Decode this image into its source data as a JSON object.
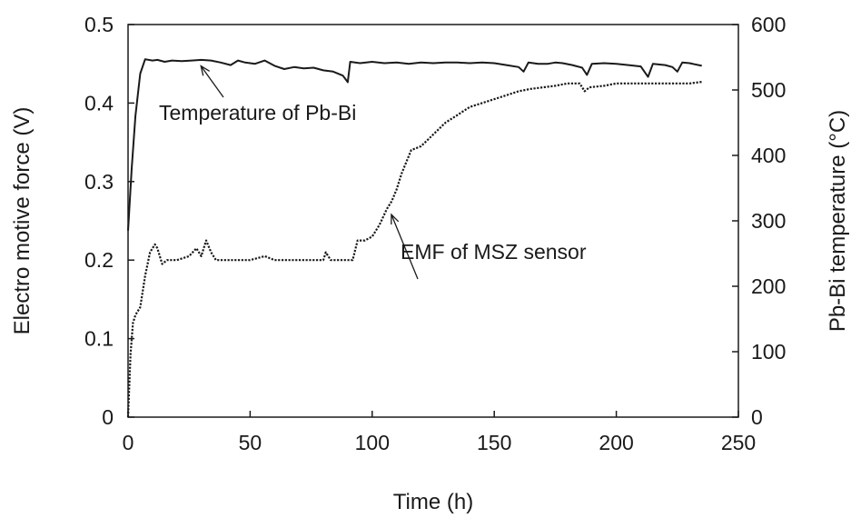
{
  "chart_data": {
    "type": "line",
    "xlabel": "Time (h)",
    "ylabel": "Electro motive force (V)",
    "y2label": "Pb-Bi temperature (°C)",
    "xlim": [
      0,
      250
    ],
    "ylim": [
      0,
      0.5
    ],
    "y2lim": [
      0,
      600
    ],
    "x_ticks": [
      "0",
      "50",
      "100",
      "150",
      "200",
      "250"
    ],
    "y_ticks": [
      "0",
      "0.1",
      "0.2",
      "0.3",
      "0.4",
      "0.5"
    ],
    "y2_ticks": [
      "0",
      "100",
      "200",
      "300",
      "400",
      "500",
      "600"
    ],
    "grid": false,
    "legend": "none",
    "series": [
      {
        "name": "Temperature of Pb-Bi",
        "axis": "right",
        "style": "solid",
        "color": "#1a1a1a",
        "points": [
          [
            0,
            285
          ],
          [
            1.5,
            380
          ],
          [
            3,
            460
          ],
          [
            5,
            525
          ],
          [
            7,
            547
          ],
          [
            10,
            545
          ],
          [
            12,
            546
          ],
          [
            15,
            543
          ],
          [
            18,
            545
          ],
          [
            22,
            544
          ],
          [
            26,
            545
          ],
          [
            30,
            546
          ],
          [
            34,
            545
          ],
          [
            38,
            542
          ],
          [
            42,
            538
          ],
          [
            45,
            545
          ],
          [
            48,
            542
          ],
          [
            52,
            540
          ],
          [
            56,
            545
          ],
          [
            60,
            537
          ],
          [
            64,
            532
          ],
          [
            68,
            535
          ],
          [
            72,
            533
          ],
          [
            76,
            534
          ],
          [
            80,
            530
          ],
          [
            84,
            528
          ],
          [
            88,
            522
          ],
          [
            90,
            512
          ],
          [
            91,
            543
          ],
          [
            95,
            541
          ],
          [
            100,
            543
          ],
          [
            105,
            541
          ],
          [
            110,
            542
          ],
          [
            115,
            540
          ],
          [
            120,
            542
          ],
          [
            125,
            541
          ],
          [
            130,
            542
          ],
          [
            135,
            542
          ],
          [
            140,
            541
          ],
          [
            145,
            542
          ],
          [
            150,
            541
          ],
          [
            155,
            538
          ],
          [
            160,
            535
          ],
          [
            162,
            528
          ],
          [
            164,
            542
          ],
          [
            168,
            540
          ],
          [
            172,
            540
          ],
          [
            175,
            542
          ],
          [
            178,
            541
          ],
          [
            182,
            538
          ],
          [
            186,
            534
          ],
          [
            188,
            523
          ],
          [
            190,
            540
          ],
          [
            195,
            541
          ],
          [
            200,
            540
          ],
          [
            205,
            538
          ],
          [
            210,
            536
          ],
          [
            213,
            520
          ],
          [
            215,
            540
          ],
          [
            220,
            538
          ],
          [
            223,
            535
          ],
          [
            225,
            528
          ],
          [
            227,
            542
          ],
          [
            230,
            541
          ],
          [
            235,
            537
          ]
        ]
      },
      {
        "name": "EMF of MSZ sensor",
        "axis": "left",
        "style": "dotted",
        "color": "#1a1a1a",
        "points": [
          [
            0,
            0.0
          ],
          [
            1,
            0.08
          ],
          [
            2,
            0.12
          ],
          [
            3,
            0.13
          ],
          [
            5,
            0.14
          ],
          [
            7,
            0.18
          ],
          [
            9,
            0.21
          ],
          [
            11,
            0.22
          ],
          [
            12,
            0.215
          ],
          [
            14,
            0.195
          ],
          [
            16,
            0.2
          ],
          [
            20,
            0.2
          ],
          [
            25,
            0.205
          ],
          [
            28,
            0.215
          ],
          [
            30,
            0.205
          ],
          [
            32,
            0.225
          ],
          [
            34,
            0.21
          ],
          [
            36,
            0.2
          ],
          [
            42,
            0.2
          ],
          [
            50,
            0.2
          ],
          [
            56,
            0.205
          ],
          [
            60,
            0.2
          ],
          [
            70,
            0.2
          ],
          [
            80,
            0.2
          ],
          [
            81,
            0.21
          ],
          [
            83,
            0.2
          ],
          [
            90,
            0.2
          ],
          [
            92,
            0.2
          ],
          [
            94,
            0.225
          ],
          [
            97,
            0.225
          ],
          [
            100,
            0.23
          ],
          [
            103,
            0.245
          ],
          [
            106,
            0.265
          ],
          [
            108,
            0.275
          ],
          [
            110,
            0.29
          ],
          [
            112,
            0.31
          ],
          [
            114,
            0.325
          ],
          [
            116,
            0.34
          ],
          [
            120,
            0.345
          ],
          [
            125,
            0.36
          ],
          [
            130,
            0.375
          ],
          [
            135,
            0.385
          ],
          [
            140,
            0.395
          ],
          [
            145,
            0.4
          ],
          [
            150,
            0.405
          ],
          [
            155,
            0.41
          ],
          [
            160,
            0.415
          ],
          [
            165,
            0.418
          ],
          [
            170,
            0.42
          ],
          [
            175,
            0.422
          ],
          [
            180,
            0.425
          ],
          [
            185,
            0.425
          ],
          [
            187,
            0.415
          ],
          [
            189,
            0.42
          ],
          [
            195,
            0.422
          ],
          [
            200,
            0.425
          ],
          [
            210,
            0.425
          ],
          [
            220,
            0.425
          ],
          [
            230,
            0.425
          ],
          [
            235,
            0.427
          ]
        ]
      }
    ],
    "annotations": [
      {
        "text": "Temperature of Pb-Bi",
        "points_to": [
          28,
          545
        ],
        "axis": "right"
      },
      {
        "text": "EMF of MSZ sensor",
        "points_to": [
          106,
          0.265
        ],
        "axis": "left"
      }
    ]
  }
}
